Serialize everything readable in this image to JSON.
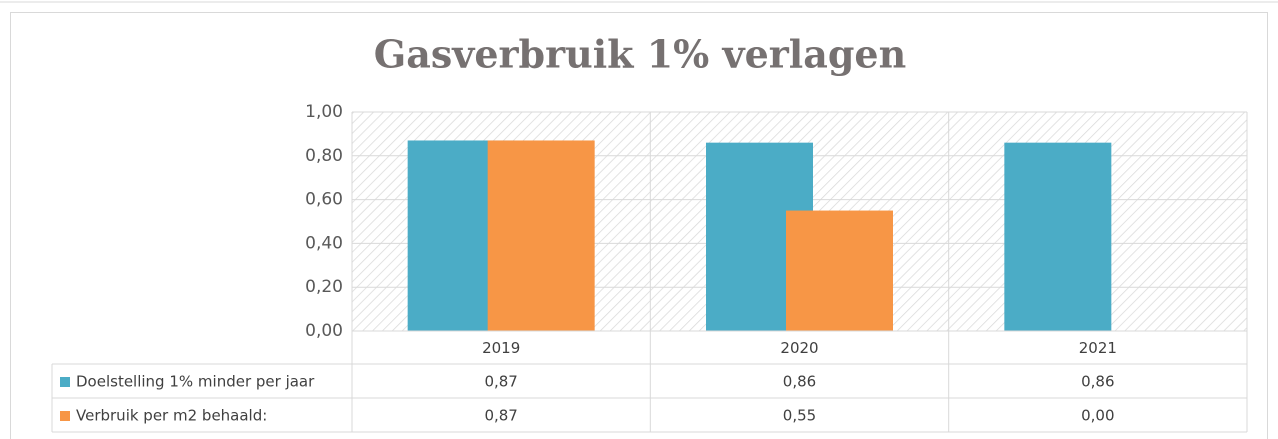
{
  "chart_data": {
    "type": "bar",
    "title": "Gasverbruik 1% verlagen",
    "categories": [
      "2019",
      "2020",
      "2021"
    ],
    "series": [
      {
        "name": "Doelstelling 1% minder per jaar",
        "color": "#4bacc6",
        "values": [
          0.87,
          0.86,
          0.86
        ],
        "value_labels": [
          "0,87",
          "0,86",
          "0,86"
        ]
      },
      {
        "name": "Verbruik per m2 behaald:",
        "color": "#f79646",
        "values": [
          0.87,
          0.55,
          0.0
        ],
        "value_labels": [
          "0,87",
          "0,55",
          "0,00"
        ]
      }
    ],
    "ylim": [
      0,
      1
    ],
    "yticks": [
      {
        "value": 0,
        "label": "0,00"
      },
      {
        "value": 0.2,
        "label": "0,20"
      },
      {
        "value": 0.4,
        "label": "0,40"
      },
      {
        "value": 0.6,
        "label": "0,60"
      },
      {
        "value": 0.8,
        "label": "0,80"
      },
      {
        "value": 1,
        "label": "1,00"
      }
    ],
    "grid": true,
    "data_table": true
  }
}
